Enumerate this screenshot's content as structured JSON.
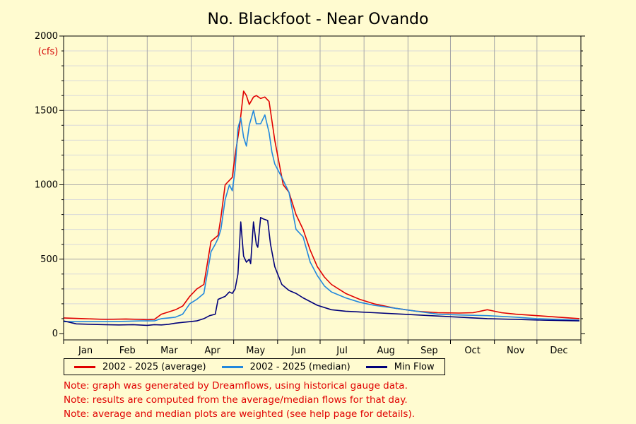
{
  "chart_data": {
    "type": "line",
    "title": "No. Blackfoot - Near Ovando",
    "ylabel": "(cfs)",
    "xlabel": "",
    "ylim": [
      0,
      2000
    ],
    "yticks": [
      "0",
      "500",
      "1000",
      "1500",
      "2000"
    ],
    "x_month_labels": [
      "Jan",
      "Feb",
      "Mar",
      "Apr",
      "May",
      "Jun",
      "Jul",
      "Aug",
      "Sep",
      "Oct",
      "Nov",
      "Dec"
    ],
    "x_unit": "day of year",
    "grid": true,
    "legend_position": "bottom",
    "series": [
      {
        "name": "2002 - 2025 (average)",
        "color": "#e00000",
        "x": [
          1,
          15,
          30,
          45,
          55,
          60,
          65,
          70,
          75,
          80,
          85,
          90,
          95,
          100,
          105,
          110,
          112,
          115,
          120,
          122,
          125,
          128,
          130,
          132,
          135,
          137,
          140,
          143,
          146,
          150,
          153,
          156,
          160,
          165,
          170,
          175,
          180,
          185,
          190,
          200,
          210,
          220,
          235,
          250,
          265,
          280,
          290,
          300,
          305,
          310,
          320,
          335,
          350,
          365
        ],
        "y": [
          105,
          100,
          95,
          98,
          95,
          93,
          95,
          130,
          145,
          160,
          185,
          250,
          300,
          330,
          620,
          660,
          780,
          1000,
          1050,
          1200,
          1380,
          1630,
          1600,
          1540,
          1590,
          1600,
          1580,
          1590,
          1560,
          1300,
          1150,
          1000,
          950,
          800,
          700,
          560,
          450,
          380,
          330,
          270,
          230,
          200,
          170,
          150,
          140,
          138,
          140,
          160,
          150,
          140,
          130,
          120,
          110,
          100
        ]
      },
      {
        "name": "2002 - 2025 (median)",
        "color": "#2288dd",
        "x": [
          1,
          15,
          30,
          45,
          55,
          60,
          65,
          70,
          75,
          80,
          85,
          90,
          95,
          100,
          105,
          108,
          110,
          112,
          115,
          118,
          120,
          122,
          124,
          126,
          128,
          130,
          132,
          135,
          137,
          140,
          143,
          146,
          148,
          150,
          155,
          160,
          165,
          170,
          175,
          180,
          185,
          190,
          200,
          210,
          220,
          235,
          250,
          265,
          280,
          300,
          320,
          335,
          350,
          365
        ],
        "y": [
          80,
          80,
          80,
          82,
          85,
          85,
          85,
          100,
          105,
          110,
          130,
          200,
          230,
          270,
          550,
          600,
          640,
          700,
          900,
          1000,
          960,
          1100,
          1380,
          1450,
          1320,
          1260,
          1400,
          1500,
          1410,
          1410,
          1470,
          1350,
          1220,
          1140,
          1050,
          950,
          700,
          650,
          480,
          390,
          320,
          280,
          240,
          210,
          190,
          170,
          150,
          130,
          125,
          120,
          110,
          100,
          95,
          90
        ]
      },
      {
        "name": "Min Flow",
        "color": "#00007a",
        "x": [
          1,
          10,
          20,
          30,
          40,
          50,
          60,
          65,
          70,
          75,
          80,
          85,
          90,
          95,
          100,
          104,
          108,
          110,
          115,
          118,
          120,
          122,
          124,
          126,
          128,
          130,
          132,
          133,
          135,
          137,
          138,
          140,
          142,
          145,
          147,
          150,
          155,
          160,
          165,
          170,
          180,
          190,
          200,
          220,
          240,
          260,
          280,
          300,
          320,
          340,
          365
        ],
        "y": [
          85,
          65,
          62,
          60,
          58,
          60,
          55,
          60,
          58,
          62,
          70,
          75,
          80,
          85,
          100,
          120,
          130,
          230,
          250,
          280,
          270,
          300,
          400,
          750,
          520,
          480,
          500,
          470,
          750,
          600,
          580,
          780,
          770,
          760,
          600,
          450,
          330,
          290,
          270,
          240,
          190,
          160,
          150,
          140,
          130,
          120,
          110,
          100,
          95,
          90,
          85
        ]
      }
    ]
  },
  "legend": {
    "entries": [
      {
        "label": "2002 - 2025 (average)",
        "color": "#e00000"
      },
      {
        "label": "2002 - 2025 (median)",
        "color": "#2288dd"
      },
      {
        "label": "Min Flow",
        "color": "#00007a"
      }
    ]
  },
  "notes": [
    "Note: graph was generated by Dreamflows, using historical gauge data.",
    "Note: results are computed from the average/median flows for that day.",
    "Note: average and median plots are weighted (see help page for details)."
  ]
}
